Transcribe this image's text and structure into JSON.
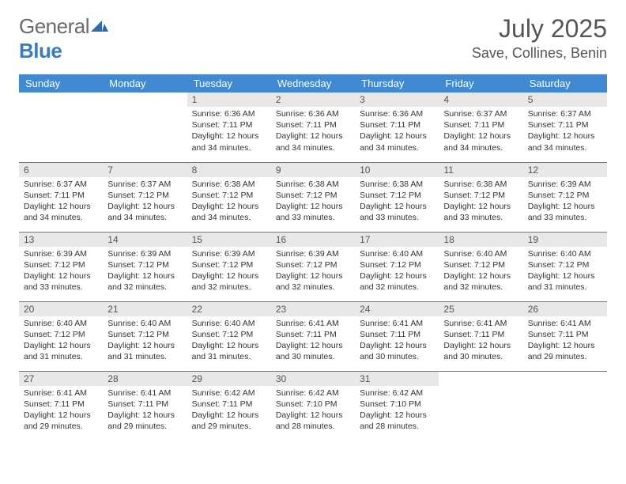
{
  "logo": {
    "word1": "General",
    "word2": "Blue"
  },
  "title": "July 2025",
  "location": "Save, Collines, Benin",
  "colors": {
    "header_bg": "#4189d0",
    "header_fg": "#ffffff",
    "daynum_bg": "#e8e8e8",
    "row_divider": "#5a7a9a",
    "logo_gray": "#6b6b6b",
    "logo_blue": "#3d7bc0"
  },
  "weekdays": [
    "Sunday",
    "Monday",
    "Tuesday",
    "Wednesday",
    "Thursday",
    "Friday",
    "Saturday"
  ],
  "grid": [
    [
      null,
      null,
      {
        "n": "1",
        "sr": "6:36 AM",
        "ss": "7:11 PM",
        "dl": "12 hours and 34 minutes."
      },
      {
        "n": "2",
        "sr": "6:36 AM",
        "ss": "7:11 PM",
        "dl": "12 hours and 34 minutes."
      },
      {
        "n": "3",
        "sr": "6:36 AM",
        "ss": "7:11 PM",
        "dl": "12 hours and 34 minutes."
      },
      {
        "n": "4",
        "sr": "6:37 AM",
        "ss": "7:11 PM",
        "dl": "12 hours and 34 minutes."
      },
      {
        "n": "5",
        "sr": "6:37 AM",
        "ss": "7:11 PM",
        "dl": "12 hours and 34 minutes."
      }
    ],
    [
      {
        "n": "6",
        "sr": "6:37 AM",
        "ss": "7:11 PM",
        "dl": "12 hours and 34 minutes."
      },
      {
        "n": "7",
        "sr": "6:37 AM",
        "ss": "7:12 PM",
        "dl": "12 hours and 34 minutes."
      },
      {
        "n": "8",
        "sr": "6:38 AM",
        "ss": "7:12 PM",
        "dl": "12 hours and 34 minutes."
      },
      {
        "n": "9",
        "sr": "6:38 AM",
        "ss": "7:12 PM",
        "dl": "12 hours and 33 minutes."
      },
      {
        "n": "10",
        "sr": "6:38 AM",
        "ss": "7:12 PM",
        "dl": "12 hours and 33 minutes."
      },
      {
        "n": "11",
        "sr": "6:38 AM",
        "ss": "7:12 PM",
        "dl": "12 hours and 33 minutes."
      },
      {
        "n": "12",
        "sr": "6:39 AM",
        "ss": "7:12 PM",
        "dl": "12 hours and 33 minutes."
      }
    ],
    [
      {
        "n": "13",
        "sr": "6:39 AM",
        "ss": "7:12 PM",
        "dl": "12 hours and 33 minutes."
      },
      {
        "n": "14",
        "sr": "6:39 AM",
        "ss": "7:12 PM",
        "dl": "12 hours and 32 minutes."
      },
      {
        "n": "15",
        "sr": "6:39 AM",
        "ss": "7:12 PM",
        "dl": "12 hours and 32 minutes."
      },
      {
        "n": "16",
        "sr": "6:39 AM",
        "ss": "7:12 PM",
        "dl": "12 hours and 32 minutes."
      },
      {
        "n": "17",
        "sr": "6:40 AM",
        "ss": "7:12 PM",
        "dl": "12 hours and 32 minutes."
      },
      {
        "n": "18",
        "sr": "6:40 AM",
        "ss": "7:12 PM",
        "dl": "12 hours and 32 minutes."
      },
      {
        "n": "19",
        "sr": "6:40 AM",
        "ss": "7:12 PM",
        "dl": "12 hours and 31 minutes."
      }
    ],
    [
      {
        "n": "20",
        "sr": "6:40 AM",
        "ss": "7:12 PM",
        "dl": "12 hours and 31 minutes."
      },
      {
        "n": "21",
        "sr": "6:40 AM",
        "ss": "7:12 PM",
        "dl": "12 hours and 31 minutes."
      },
      {
        "n": "22",
        "sr": "6:40 AM",
        "ss": "7:12 PM",
        "dl": "12 hours and 31 minutes."
      },
      {
        "n": "23",
        "sr": "6:41 AM",
        "ss": "7:11 PM",
        "dl": "12 hours and 30 minutes."
      },
      {
        "n": "24",
        "sr": "6:41 AM",
        "ss": "7:11 PM",
        "dl": "12 hours and 30 minutes."
      },
      {
        "n": "25",
        "sr": "6:41 AM",
        "ss": "7:11 PM",
        "dl": "12 hours and 30 minutes."
      },
      {
        "n": "26",
        "sr": "6:41 AM",
        "ss": "7:11 PM",
        "dl": "12 hours and 29 minutes."
      }
    ],
    [
      {
        "n": "27",
        "sr": "6:41 AM",
        "ss": "7:11 PM",
        "dl": "12 hours and 29 minutes."
      },
      {
        "n": "28",
        "sr": "6:41 AM",
        "ss": "7:11 PM",
        "dl": "12 hours and 29 minutes."
      },
      {
        "n": "29",
        "sr": "6:42 AM",
        "ss": "7:11 PM",
        "dl": "12 hours and 29 minutes."
      },
      {
        "n": "30",
        "sr": "6:42 AM",
        "ss": "7:10 PM",
        "dl": "12 hours and 28 minutes."
      },
      {
        "n": "31",
        "sr": "6:42 AM",
        "ss": "7:10 PM",
        "dl": "12 hours and 28 minutes."
      },
      null,
      null
    ]
  ],
  "labels": {
    "sunrise": "Sunrise:",
    "sunset": "Sunset:",
    "daylight": "Daylight:"
  }
}
